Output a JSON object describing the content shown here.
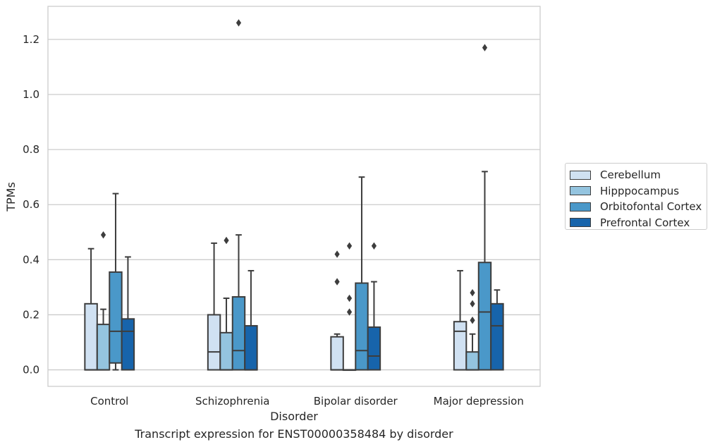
{
  "chart_data": {
    "type": "box",
    "xlabel": "Disorder",
    "ylabel": "TPMs",
    "ylim": [
      -0.06,
      1.32
    ],
    "yticks": [
      0.0,
      0.2,
      0.4,
      0.6,
      0.8,
      1.0,
      1.2
    ],
    "ytick_labels": [
      "0.0",
      "0.2",
      "0.4",
      "0.6",
      "0.8",
      "1.0",
      "1.2"
    ],
    "categories": [
      "Control",
      "Schizophrenia",
      "Bipolar disorder",
      "Major depression"
    ],
    "grid": "horizontal",
    "legend_placement": "right, outside plot",
    "series": [
      {
        "name": "Cerebellum",
        "color": "#d0e1f2",
        "boxes": [
          {
            "whislo": 0.0,
            "q1": 0.0,
            "med": 0.0,
            "q3": 0.24,
            "whishi": 0.44,
            "fliers": []
          },
          {
            "whislo": 0.0,
            "q1": 0.0,
            "med": 0.065,
            "q3": 0.2,
            "whishi": 0.46,
            "fliers": []
          },
          {
            "whislo": 0.0,
            "q1": 0.0,
            "med": 0.0,
            "q3": 0.12,
            "whishi": 0.13,
            "fliers": [
              0.32,
              0.42
            ]
          },
          {
            "whislo": 0.0,
            "q1": 0.0,
            "med": 0.14,
            "q3": 0.175,
            "whishi": 0.36,
            "fliers": []
          }
        ]
      },
      {
        "name": "Hipppocampus",
        "color": "#94c4df",
        "boxes": [
          {
            "whislo": 0.0,
            "q1": 0.0,
            "med": 0.0,
            "q3": 0.165,
            "whishi": 0.22,
            "fliers": [
              0.49
            ]
          },
          {
            "whislo": 0.0,
            "q1": 0.0,
            "med": 0.0,
            "q3": 0.135,
            "whishi": 0.26,
            "fliers": [
              0.47
            ]
          },
          {
            "whislo": 0.0,
            "q1": 0.0,
            "med": 0.0,
            "q3": 0.0,
            "whishi": 0.0,
            "fliers": [
              0.21,
              0.26,
              0.45
            ]
          },
          {
            "whislo": 0.0,
            "q1": 0.0,
            "med": 0.0,
            "q3": 0.065,
            "whishi": 0.13,
            "fliers": [
              0.18,
              0.24,
              0.28
            ]
          }
        ]
      },
      {
        "name": "Orbitofontal Cortex",
        "color": "#4a98c9",
        "boxes": [
          {
            "whislo": 0.0,
            "q1": 0.025,
            "med": 0.14,
            "q3": 0.355,
            "whishi": 0.64,
            "fliers": []
          },
          {
            "whislo": 0.0,
            "q1": 0.0,
            "med": 0.07,
            "q3": 0.265,
            "whishi": 0.49,
            "fliers": [
              1.26
            ]
          },
          {
            "whislo": 0.0,
            "q1": 0.0,
            "med": 0.07,
            "q3": 0.315,
            "whishi": 0.7,
            "fliers": []
          },
          {
            "whislo": 0.0,
            "q1": 0.0,
            "med": 0.21,
            "q3": 0.39,
            "whishi": 0.72,
            "fliers": [
              1.17
            ]
          }
        ]
      },
      {
        "name": "Prefrontal Cortex",
        "color": "#1764ab",
        "boxes": [
          {
            "whislo": 0.0,
            "q1": 0.0,
            "med": 0.14,
            "q3": 0.185,
            "whishi": 0.41,
            "fliers": []
          },
          {
            "whislo": 0.0,
            "q1": 0.0,
            "med": 0.0,
            "q3": 0.16,
            "whishi": 0.36,
            "fliers": []
          },
          {
            "whislo": 0.0,
            "q1": 0.0,
            "med": 0.05,
            "q3": 0.155,
            "whishi": 0.32,
            "fliers": [
              0.45
            ]
          },
          {
            "whislo": 0.0,
            "q1": 0.0,
            "med": 0.16,
            "q3": 0.24,
            "whishi": 0.29,
            "fliers": []
          }
        ]
      }
    ]
  },
  "caption": "Transcript expression for ENST00000358484 by disorder"
}
